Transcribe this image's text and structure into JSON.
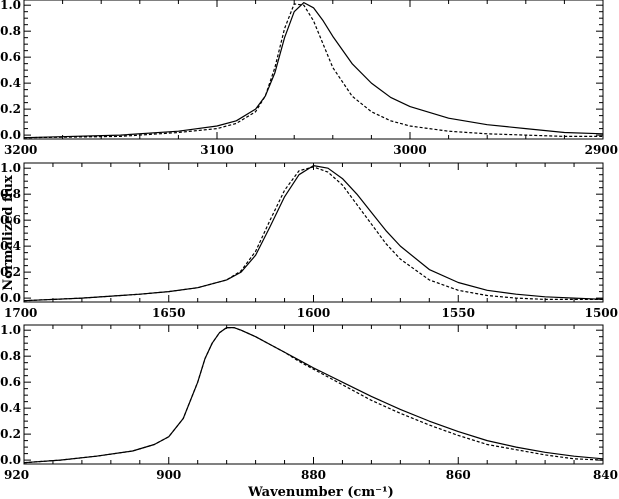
{
  "chart_data": [
    {
      "type": "line",
      "x_reversed": true,
      "xlim": [
        3200,
        2900
      ],
      "ylim": [
        -0.03,
        1.04
      ],
      "xticks": [
        3200,
        3100,
        3000,
        2900
      ],
      "yticks": [
        0.0,
        0.2,
        0.4,
        0.6,
        0.8,
        1.0
      ],
      "xtick_labels": [
        "3200",
        "3100",
        "3000",
        "2900"
      ],
      "ytick_labels": [
        "0.0",
        "0.2",
        "0.4",
        "0.6",
        "0.8",
        "1.0"
      ],
      "series": [
        {
          "style": "solid",
          "color": "#000000",
          "x": [
            3200,
            3150,
            3120,
            3100,
            3090,
            3080,
            3075,
            3070,
            3065,
            3060,
            3055,
            3050,
            3045,
            3040,
            3030,
            3020,
            3010,
            3000,
            2980,
            2960,
            2940,
            2920,
            2900
          ],
          "values": [
            -0.02,
            0.0,
            0.03,
            0.07,
            0.11,
            0.2,
            0.3,
            0.48,
            0.75,
            0.95,
            1.02,
            0.98,
            0.88,
            0.76,
            0.55,
            0.4,
            0.29,
            0.22,
            0.13,
            0.08,
            0.05,
            0.02,
            0.01
          ]
        },
        {
          "style": "dashed",
          "color": "#000000",
          "x": [
            3200,
            3150,
            3120,
            3100,
            3090,
            3080,
            3075,
            3070,
            3065,
            3060,
            3055,
            3050,
            3045,
            3040,
            3030,
            3020,
            3010,
            3000,
            2980,
            2960,
            2940,
            2920,
            2900
          ],
          "values": [
            -0.02,
            -0.01,
            0.02,
            0.05,
            0.09,
            0.18,
            0.3,
            0.52,
            0.82,
            1.01,
            1.0,
            0.88,
            0.7,
            0.52,
            0.3,
            0.18,
            0.11,
            0.07,
            0.03,
            0.01,
            0.0,
            -0.01,
            -0.01
          ]
        }
      ]
    },
    {
      "type": "line",
      "x_reversed": true,
      "xlim": [
        1700,
        1500
      ],
      "ylim": [
        -0.03,
        1.04
      ],
      "xticks": [
        1700,
        1650,
        1600,
        1550,
        1500
      ],
      "yticks": [
        0.0,
        0.2,
        0.4,
        0.6,
        0.8,
        1.0
      ],
      "xtick_labels": [
        "1700",
        "1650",
        "1600",
        "1550",
        "1500"
      ],
      "ytick_labels": [
        "0.0",
        "0.2",
        "0.4",
        "0.6",
        "0.8",
        "1.0"
      ],
      "series": [
        {
          "style": "solid",
          "color": "#000000",
          "x": [
            1700,
            1680,
            1660,
            1650,
            1640,
            1630,
            1625,
            1620,
            1615,
            1610,
            1605,
            1600,
            1595,
            1590,
            1585,
            1580,
            1575,
            1570,
            1560,
            1550,
            1540,
            1530,
            1520,
            1500
          ],
          "values": [
            -0.02,
            0.0,
            0.03,
            0.05,
            0.08,
            0.14,
            0.2,
            0.33,
            0.55,
            0.78,
            0.95,
            1.02,
            1.0,
            0.92,
            0.8,
            0.66,
            0.52,
            0.4,
            0.22,
            0.12,
            0.06,
            0.03,
            0.01,
            -0.01
          ]
        },
        {
          "style": "dashed",
          "color": "#000000",
          "x": [
            1700,
            1680,
            1660,
            1650,
            1640,
            1630,
            1625,
            1620,
            1615,
            1610,
            1605,
            1600,
            1595,
            1590,
            1585,
            1580,
            1575,
            1570,
            1560,
            1550,
            1540,
            1530,
            1520,
            1500
          ],
          "values": [
            -0.02,
            0.0,
            0.03,
            0.05,
            0.08,
            0.14,
            0.21,
            0.36,
            0.6,
            0.83,
            0.98,
            1.01,
            0.97,
            0.87,
            0.72,
            0.57,
            0.42,
            0.3,
            0.14,
            0.06,
            0.02,
            0.0,
            -0.01,
            -0.01
          ]
        }
      ]
    },
    {
      "type": "line",
      "x_reversed": true,
      "xlim": [
        920,
        840
      ],
      "ylim": [
        -0.03,
        1.04
      ],
      "xticks": [
        920,
        900,
        880,
        860,
        840
      ],
      "yticks": [
        0.0,
        0.2,
        0.4,
        0.6,
        0.8,
        1.0
      ],
      "xtick_labels": [
        "920",
        "900",
        "880",
        "860",
        "840"
      ],
      "ytick_labels": [
        "0.0",
        "0.2",
        "0.4",
        "0.6",
        "0.8",
        "1.0"
      ],
      "xlabel": "Wavenumber (cm⁻¹)",
      "series": [
        {
          "style": "solid",
          "color": "#000000",
          "x": [
            920,
            915,
            910,
            905,
            902,
            900,
            898,
            896,
            895,
            894,
            893,
            892,
            891,
            890,
            888,
            886,
            884,
            882,
            880,
            876,
            872,
            868,
            864,
            860,
            856,
            852,
            848,
            844,
            840
          ],
          "values": [
            -0.02,
            0.0,
            0.03,
            0.07,
            0.12,
            0.18,
            0.32,
            0.6,
            0.78,
            0.9,
            0.98,
            1.02,
            1.02,
            1.0,
            0.95,
            0.89,
            0.83,
            0.77,
            0.71,
            0.6,
            0.49,
            0.39,
            0.3,
            0.22,
            0.15,
            0.1,
            0.06,
            0.03,
            0.01
          ]
        },
        {
          "style": "dashed",
          "color": "#000000",
          "x": [
            920,
            915,
            910,
            905,
            902,
            900,
            898,
            896,
            895,
            894,
            893,
            892,
            891,
            890,
            888,
            886,
            884,
            882,
            880,
            876,
            872,
            868,
            864,
            860,
            856,
            852,
            848,
            844,
            840
          ],
          "values": [
            -0.02,
            0.0,
            0.03,
            0.07,
            0.12,
            0.18,
            0.32,
            0.6,
            0.78,
            0.9,
            0.98,
            1.02,
            1.02,
            1.0,
            0.95,
            0.89,
            0.83,
            0.76,
            0.7,
            0.58,
            0.46,
            0.36,
            0.27,
            0.19,
            0.12,
            0.08,
            0.04,
            0.01,
            0.0
          ]
        }
      ]
    }
  ],
  "shared": {
    "ylabel": "Normalized flux"
  }
}
